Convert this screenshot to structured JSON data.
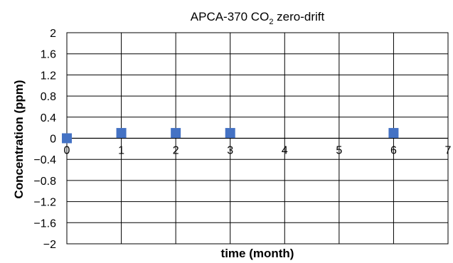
{
  "chart_data": {
    "type": "scatter",
    "title": "APCA-370 CO",
    "title_subscript": "2",
    "title_suffix": " zero-drift",
    "xlabel": "time (month)",
    "ylabel": "Concentration (ppm)",
    "xlim": [
      0,
      7
    ],
    "ylim": [
      -2,
      2
    ],
    "x_ticks": [
      "0",
      "1",
      "2",
      "3",
      "4",
      "5",
      "6",
      "7"
    ],
    "y_ticks": [
      "2",
      "1.6",
      "1.2",
      "0.8",
      "0.4",
      "0",
      "−0.4",
      "−0.8",
      "−1.2",
      "−1.6",
      "−2"
    ],
    "grid": true,
    "marker": "square",
    "marker_color": "#4472C4",
    "points": [
      {
        "x": 0,
        "y": 0
      },
      {
        "x": 1,
        "y": 0.1
      },
      {
        "x": 2,
        "y": 0.1
      },
      {
        "x": 3,
        "y": 0.1
      },
      {
        "x": 6,
        "y": 0.1
      }
    ]
  }
}
